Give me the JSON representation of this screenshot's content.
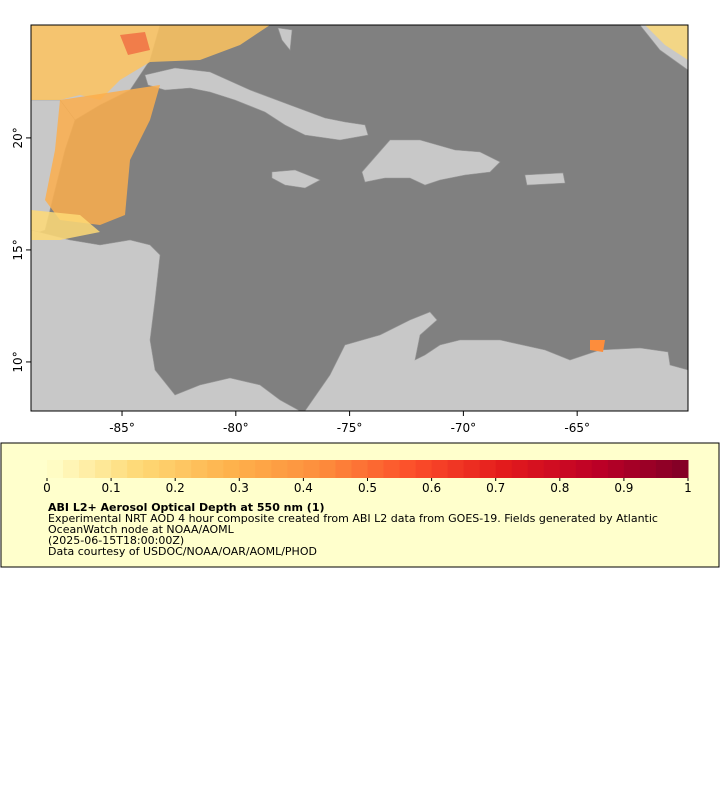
{
  "map": {
    "xlim": [
      -89,
      -60.13
    ],
    "ylim": [
      7.81,
      25.04
    ],
    "xticks": [
      {
        "value": -85,
        "label": "-85°"
      },
      {
        "value": -80,
        "label": "-80°"
      },
      {
        "value": -75,
        "label": "-75°"
      },
      {
        "value": -70,
        "label": "-70°"
      },
      {
        "value": -65,
        "label": "-65°"
      }
    ],
    "yticks": [
      {
        "value": 10,
        "label": "10°"
      },
      {
        "value": 15,
        "label": "15°"
      },
      {
        "value": 20,
        "label": "20°"
      }
    ]
  },
  "colorbar": {
    "lim": [
      0,
      1
    ],
    "ticks": [
      0,
      0.1,
      0.2,
      0.3,
      0.4,
      0.5,
      0.6,
      0.7,
      0.8,
      0.9,
      1
    ],
    "colors": [
      "#ffffcc",
      "#fed976",
      "#feb24c",
      "#fd8d3c",
      "#fc4e2a",
      "#e31a1c",
      "#bd0026",
      "#800026"
    ]
  },
  "caption": {
    "title": "ABI L2+ Aerosol Optical Depth at 550 nm (1)",
    "lines": [
      "Experimental NRT AOD 4 hour composite created from ABI L2 data from GOES-19. Fields generated by Atlantic",
      "OceanWatch node at NOAA/AOML",
      "(2025-06-15T18:00:00Z)",
      "Data courtesy of USDOC/NOAA/OAR/AOML/PHOD"
    ]
  }
}
